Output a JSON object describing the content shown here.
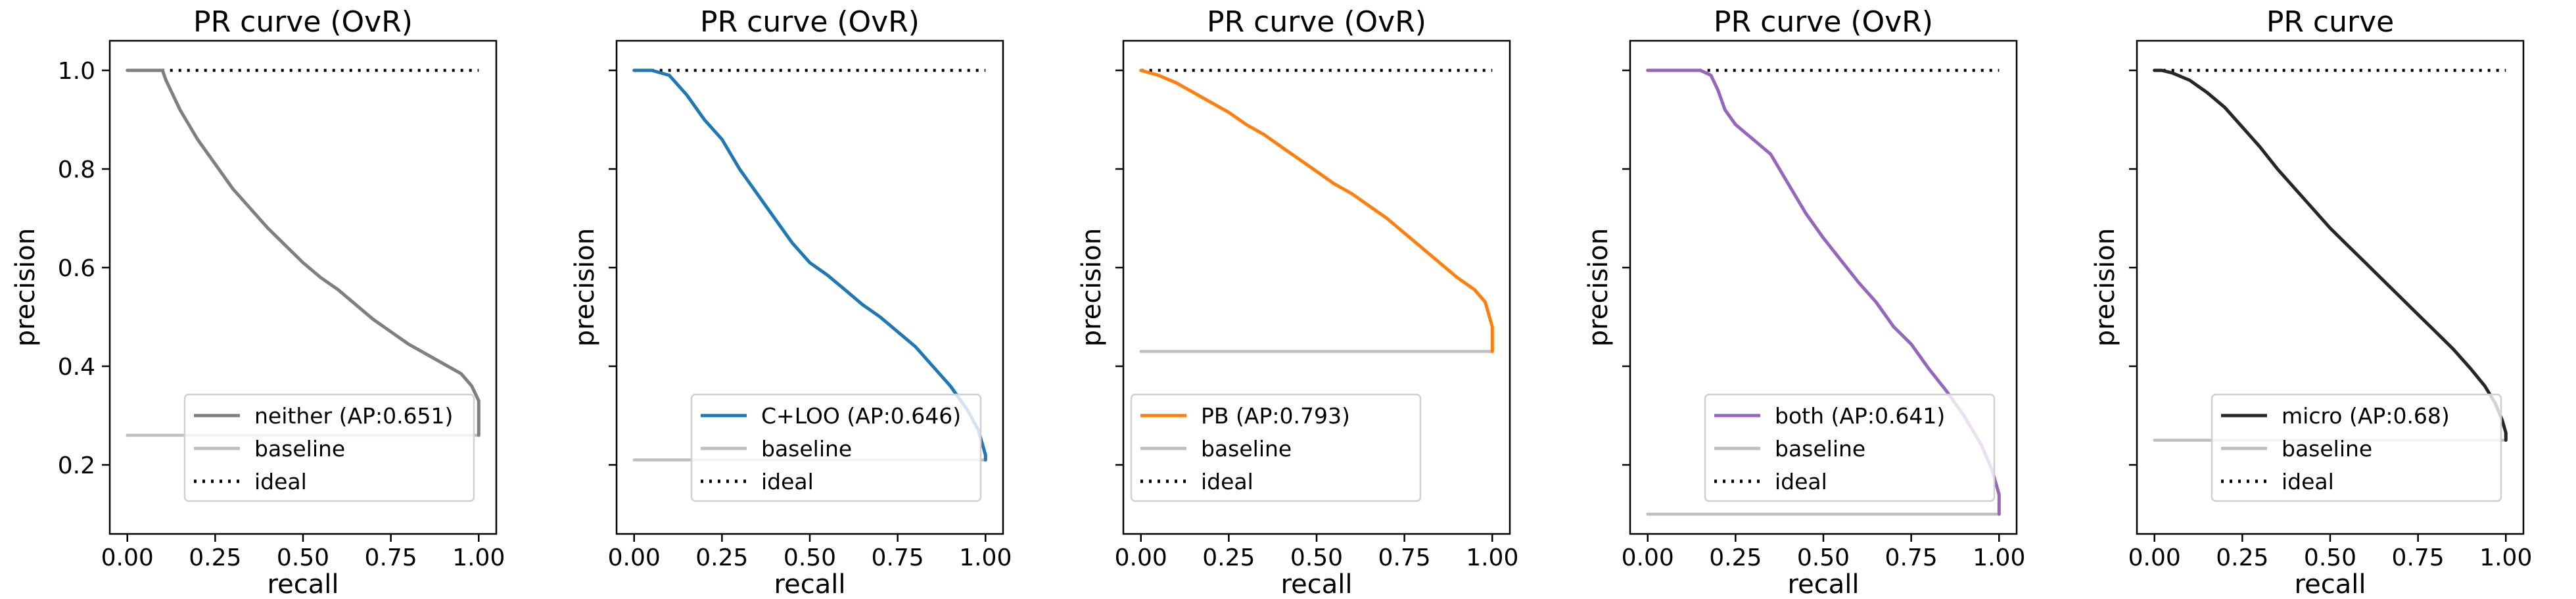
{
  "chart_data": [
    {
      "type": "line",
      "title": "PR curve (OvR)",
      "xlabel": "recall",
      "ylabel": "precision",
      "xlim": [
        -0.05,
        1.05
      ],
      "ylim": [
        0.06,
        1.06
      ],
      "xticks": [
        "0.00",
        "0.25",
        "0.50",
        "0.75",
        "1.00"
      ],
      "yticks": [
        "0.2",
        "0.4",
        "0.6",
        "0.8",
        "1.0"
      ],
      "legend_position": "lower-center",
      "series": [
        {
          "name": "neither (AP:0.651)",
          "color": "#7f7f7f",
          "style": "solid",
          "x": [
            0,
            0.05,
            0.1,
            0.11,
            0.15,
            0.2,
            0.25,
            0.3,
            0.35,
            0.4,
            0.45,
            0.5,
            0.55,
            0.6,
            0.65,
            0.7,
            0.75,
            0.8,
            0.85,
            0.9,
            0.95,
            0.98,
            1.0,
            1.0
          ],
          "y": [
            1.0,
            1.0,
            1.0,
            0.98,
            0.92,
            0.86,
            0.81,
            0.76,
            0.72,
            0.68,
            0.645,
            0.61,
            0.58,
            0.555,
            0.525,
            0.495,
            0.47,
            0.445,
            0.425,
            0.405,
            0.385,
            0.36,
            0.33,
            0.26
          ]
        },
        {
          "name": "baseline",
          "color": "#bfbfbf",
          "style": "solid",
          "x": [
            0,
            1
          ],
          "y": [
            0.26,
            0.26
          ]
        },
        {
          "name": "ideal",
          "color": "#000000",
          "style": "dotted",
          "x": [
            0,
            1
          ],
          "y": [
            1.0,
            1.0
          ]
        }
      ]
    },
    {
      "type": "line",
      "title": "PR curve (OvR)",
      "xlabel": "recall",
      "ylabel": "precision",
      "xlim": [
        -0.05,
        1.05
      ],
      "ylim": [
        0.06,
        1.06
      ],
      "xticks": [
        "0.00",
        "0.25",
        "0.50",
        "0.75",
        "1.00"
      ],
      "yticks": [
        "0.2",
        "0.4",
        "0.6",
        "0.8",
        "1.0"
      ],
      "legend_position": "lower-center",
      "series": [
        {
          "name": "C+LOO (AP:0.646)",
          "color": "#1f77b4",
          "style": "solid",
          "x": [
            0,
            0.05,
            0.1,
            0.15,
            0.2,
            0.25,
            0.3,
            0.35,
            0.4,
            0.45,
            0.5,
            0.55,
            0.6,
            0.65,
            0.7,
            0.75,
            0.8,
            0.85,
            0.9,
            0.95,
            0.98,
            1.0,
            1.0
          ],
          "y": [
            1.0,
            1.0,
            0.99,
            0.95,
            0.9,
            0.86,
            0.8,
            0.75,
            0.7,
            0.65,
            0.61,
            0.585,
            0.555,
            0.525,
            0.5,
            0.47,
            0.44,
            0.4,
            0.36,
            0.31,
            0.27,
            0.22,
            0.21
          ]
        },
        {
          "name": "baseline",
          "color": "#bfbfbf",
          "style": "solid",
          "x": [
            0,
            1
          ],
          "y": [
            0.21,
            0.21
          ]
        },
        {
          "name": "ideal",
          "color": "#000000",
          "style": "dotted",
          "x": [
            0,
            1
          ],
          "y": [
            1.0,
            1.0
          ]
        }
      ]
    },
    {
      "type": "line",
      "title": "PR curve (OvR)",
      "xlabel": "recall",
      "ylabel": "precision",
      "xlim": [
        -0.05,
        1.05
      ],
      "ylim": [
        0.06,
        1.06
      ],
      "xticks": [
        "0.00",
        "0.25",
        "0.50",
        "0.75",
        "1.00"
      ],
      "yticks": [
        "0.2",
        "0.4",
        "0.6",
        "0.8",
        "1.0"
      ],
      "legend_position": "lower-left",
      "series": [
        {
          "name": "PB (AP:0.793)",
          "color": "#ff7f0e",
          "style": "solid",
          "x": [
            0,
            0.05,
            0.1,
            0.15,
            0.2,
            0.25,
            0.3,
            0.35,
            0.4,
            0.45,
            0.5,
            0.55,
            0.6,
            0.65,
            0.7,
            0.75,
            0.8,
            0.85,
            0.9,
            0.95,
            0.98,
            1.0,
            1.0
          ],
          "y": [
            1.0,
            0.99,
            0.975,
            0.955,
            0.935,
            0.915,
            0.89,
            0.87,
            0.845,
            0.82,
            0.795,
            0.77,
            0.75,
            0.725,
            0.7,
            0.67,
            0.64,
            0.61,
            0.58,
            0.555,
            0.53,
            0.48,
            0.43
          ]
        },
        {
          "name": "baseline",
          "color": "#bfbfbf",
          "style": "solid",
          "x": [
            0,
            1
          ],
          "y": [
            0.43,
            0.43
          ]
        },
        {
          "name": "ideal",
          "color": "#000000",
          "style": "dotted",
          "x": [
            0,
            1
          ],
          "y": [
            1.0,
            1.0
          ]
        }
      ]
    },
    {
      "type": "line",
      "title": "PR curve (OvR)",
      "xlabel": "recall",
      "ylabel": "precision",
      "xlim": [
        -0.05,
        1.05
      ],
      "ylim": [
        0.06,
        1.06
      ],
      "xticks": [
        "0.00",
        "0.25",
        "0.50",
        "0.75",
        "1.00"
      ],
      "yticks": [
        "0.2",
        "0.4",
        "0.6",
        "0.8",
        "1.0"
      ],
      "legend_position": "lower-center",
      "series": [
        {
          "name": "both (AP:0.641)",
          "color": "#9467bd",
          "style": "solid",
          "x": [
            0,
            0.05,
            0.1,
            0.15,
            0.18,
            0.2,
            0.22,
            0.25,
            0.3,
            0.35,
            0.4,
            0.45,
            0.5,
            0.55,
            0.6,
            0.65,
            0.7,
            0.75,
            0.8,
            0.85,
            0.9,
            0.95,
            0.98,
            1.0,
            1.0
          ],
          "y": [
            1.0,
            1.0,
            1.0,
            1.0,
            0.99,
            0.96,
            0.92,
            0.89,
            0.86,
            0.83,
            0.77,
            0.71,
            0.66,
            0.615,
            0.57,
            0.53,
            0.48,
            0.445,
            0.395,
            0.35,
            0.3,
            0.24,
            0.19,
            0.14,
            0.1
          ]
        },
        {
          "name": "baseline",
          "color": "#bfbfbf",
          "style": "solid",
          "x": [
            0,
            1
          ],
          "y": [
            0.1,
            0.1
          ]
        },
        {
          "name": "ideal",
          "color": "#000000",
          "style": "dotted",
          "x": [
            0,
            1
          ],
          "y": [
            1.0,
            1.0
          ]
        }
      ]
    },
    {
      "type": "line",
      "title": "PR curve",
      "xlabel": "recall",
      "ylabel": "precision",
      "xlim": [
        -0.05,
        1.05
      ],
      "ylim": [
        0.06,
        1.06
      ],
      "xticks": [
        "0.00",
        "0.25",
        "0.50",
        "0.75",
        "1.00"
      ],
      "yticks": [
        "0.2",
        "0.4",
        "0.6",
        "0.8",
        "1.0"
      ],
      "legend_position": "lower-center",
      "series": [
        {
          "name": "micro (AP:0.68)",
          "color": "#262626",
          "style": "solid",
          "x": [
            0,
            0.02,
            0.05,
            0.1,
            0.15,
            0.2,
            0.25,
            0.3,
            0.35,
            0.4,
            0.45,
            0.5,
            0.55,
            0.6,
            0.65,
            0.7,
            0.75,
            0.8,
            0.85,
            0.9,
            0.94,
            0.97,
            0.99,
            1.0,
            1.0
          ],
          "y": [
            1.0,
            1.0,
            0.995,
            0.98,
            0.955,
            0.925,
            0.885,
            0.845,
            0.8,
            0.76,
            0.72,
            0.68,
            0.645,
            0.61,
            0.575,
            0.54,
            0.505,
            0.47,
            0.435,
            0.395,
            0.36,
            0.325,
            0.29,
            0.265,
            0.25
          ]
        },
        {
          "name": "baseline",
          "color": "#bfbfbf",
          "style": "solid",
          "x": [
            0,
            1
          ],
          "y": [
            0.25,
            0.25
          ]
        },
        {
          "name": "ideal",
          "color": "#000000",
          "style": "dotted",
          "x": [
            0,
            1
          ],
          "y": [
            1.0,
            1.0
          ]
        }
      ]
    }
  ]
}
